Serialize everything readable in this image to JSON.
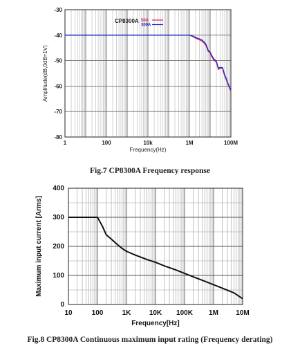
{
  "captions": {
    "fig7": "Fig.7 CP8300A Frequency response",
    "fig8": "Fig.8 CP8300A Continuous maximum input rating (Frequency derating)"
  },
  "chart_data": [
    {
      "type": "line",
      "title": "",
      "xlabel": "Frequency(Hz)",
      "ylabel": "Amplitude(dB,0dB=1V)",
      "xscale": "log",
      "xlim": [
        1,
        100000000
      ],
      "ylim": [
        -80,
        -30
      ],
      "x_tick_values": [
        1,
        100,
        10000,
        1000000,
        100000000
      ],
      "x_tick_labels": [
        "1",
        "100",
        "10k",
        "1M",
        "100M"
      ],
      "y_tick_values": [
        -30,
        -40,
        -50,
        -60,
        -70,
        -80
      ],
      "y_tick_labels": [
        "-30",
        "-40",
        "-50",
        "-60",
        "-70",
        "-80"
      ],
      "grid": true,
      "legend_title": "CP8300A",
      "legend_position": "top-left",
      "series": [
        {
          "name": "50A",
          "color": "#e0204a",
          "x": [
            1,
            1000000,
            1500000,
            2000000,
            3000000,
            4000000,
            5000000,
            6000000,
            7000000,
            8000000,
            9000000,
            10000000,
            12000000,
            15000000,
            20000000,
            25000000,
            30000000,
            40000000,
            50000000,
            60000000,
            70000000,
            80000000,
            100000000
          ],
          "values": [
            -40,
            -40,
            -40.6,
            -41.2,
            -41.8,
            -42.3,
            -43.0,
            -43.8,
            -45.0,
            -46.3,
            -46.7,
            -47.0,
            -48.5,
            -49.8,
            -50.6,
            -53.5,
            -53.0,
            -53.2,
            -56.0,
            -57.5,
            -59.0,
            -60.2,
            -62.0
          ]
        },
        {
          "name": "300A",
          "color": "#1a2ad0",
          "x": [
            1,
            1000000,
            1500000,
            2000000,
            3000000,
            4000000,
            5000000,
            6000000,
            7000000,
            8000000,
            9000000,
            10000000,
            12000000,
            15000000,
            20000000,
            25000000,
            30000000,
            40000000,
            50000000,
            60000000,
            70000000,
            80000000,
            100000000
          ],
          "values": [
            -40,
            -40,
            -40.4,
            -40.9,
            -41.4,
            -41.9,
            -42.6,
            -43.3,
            -44.5,
            -45.8,
            -46.3,
            -46.6,
            -48.0,
            -49.3,
            -50.2,
            -53.0,
            -52.6,
            -52.8,
            -55.5,
            -57.0,
            -58.6,
            -59.8,
            -61.6
          ]
        }
      ]
    },
    {
      "type": "line",
      "title": "",
      "xlabel": "Frequency[Hz]",
      "ylabel": "Maximum input current [Arms]",
      "xscale": "log",
      "xlim": [
        10,
        10000000
      ],
      "ylim": [
        0,
        400
      ],
      "x_tick_values": [
        10,
        100,
        1000,
        10000,
        100000,
        1000000,
        10000000
      ],
      "x_tick_labels": [
        "10",
        "100",
        "1K",
        "10K",
        "100K",
        "1M",
        "10M"
      ],
      "y_tick_values": [
        0,
        100,
        200,
        300,
        400
      ],
      "y_tick_labels": [
        "0",
        "100",
        "200",
        "300",
        "400"
      ],
      "grid": true,
      "series": [
        {
          "color": "#111111",
          "x": [
            10,
            100,
            150,
            200,
            300,
            500,
            700,
            1000,
            2000,
            5000,
            10000,
            20000,
            50000,
            100000,
            200000,
            500000,
            1000000,
            2000000,
            5000000,
            10000000
          ],
          "values": [
            300,
            300,
            268,
            240,
            225,
            205,
            193,
            183,
            170,
            155,
            145,
            133,
            119,
            107,
            95,
            80,
            68,
            56,
            40,
            20
          ]
        }
      ]
    }
  ]
}
